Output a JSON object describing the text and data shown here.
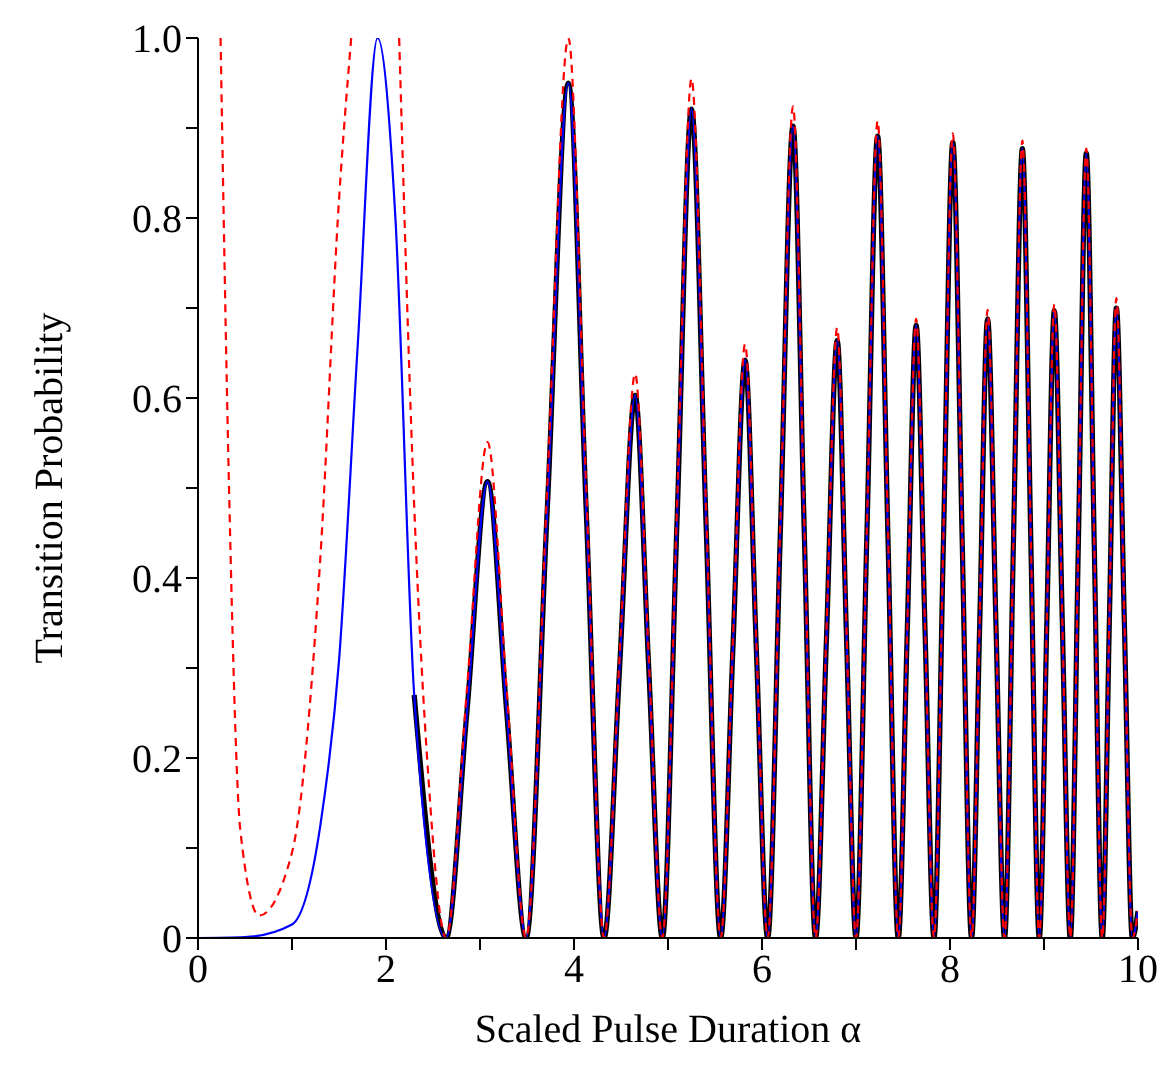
{
  "chart_data": {
    "type": "line",
    "xlabel": "Scaled Pulse Duration α",
    "ylabel": "Transition Probability",
    "xlim": [
      0,
      10
    ],
    "ylim": [
      0,
      1
    ],
    "xticks": [
      0,
      {
        "value": 1,
        "label": null
      },
      2,
      {
        "value": 3,
        "label": null
      },
      4,
      {
        "value": 5,
        "label": null
      },
      6,
      {
        "value": 7,
        "label": null
      },
      8,
      {
        "value": 9,
        "label": null
      },
      10
    ],
    "yticks": [
      0,
      {
        "value": 0.1,
        "label": null
      },
      0.2,
      {
        "value": 0.3,
        "label": null
      },
      0.4,
      {
        "value": 0.5,
        "label": null
      },
      0.6,
      {
        "value": 0.7,
        "label": null
      },
      0.8,
      {
        "value": 0.9,
        "label": null
      },
      {
        "value": 1,
        "label": "1.0"
      }
    ],
    "series": [
      {
        "color": "#000000",
        "line_style": "solid",
        "x": [
          2.3,
          2.64,
          2.86,
          3.08,
          3.285,
          3.49,
          3.715,
          3.94,
          4.13,
          4.32,
          4.485,
          4.65,
          4.795,
          4.94,
          5.095,
          5.25,
          5.405,
          5.56,
          5.69,
          5.82,
          5.94,
          6.06,
          6.195,
          6.33,
          6.45,
          6.57,
          6.685,
          6.8,
          6.9,
          7.0,
          7.115,
          7.23,
          7.34,
          7.45,
          7.545,
          7.64,
          7.735,
          7.83,
          7.93,
          8.03,
          8.13,
          8.23,
          8.315,
          8.4,
          8.49,
          8.58,
          8.675,
          8.77,
          8.86,
          8.95,
          9.03,
          9.11,
          9.195,
          9.28,
          9.365,
          9.45,
          9.535,
          9.62,
          9.695,
          9.77,
          9.855,
          9.94,
          10
        ],
        "values": [
          0.27,
          0,
          0.25,
          0.507,
          0.25,
          0,
          0.475,
          0.95,
          0.475,
          0,
          0.3,
          0.603,
          0.3,
          0,
          0.46,
          0.921,
          0.46,
          0,
          0.32,
          0.642,
          0.32,
          0,
          0.45,
          0.902,
          0.45,
          0,
          0.33,
          0.664,
          0.33,
          0,
          0.445,
          0.891,
          0.445,
          0,
          0.34,
          0.681,
          0.34,
          0,
          0.44,
          0.884,
          0.44,
          0,
          0.344,
          0.688,
          0.344,
          0,
          0.44,
          0.877,
          0.44,
          0,
          0.35,
          0.697,
          0.35,
          0,
          0.435,
          0.872,
          0.435,
          0,
          0.35,
          0.7,
          0.35,
          0,
          0.03
        ]
      },
      {
        "color": "#0000ff",
        "line_style": "solid",
        "x": [
          0,
          0.5,
          1.0,
          1.3,
          1.5,
          1.7,
          1.91,
          2.1,
          2.3,
          2.64,
          2.86,
          3.08,
          3.285,
          3.49,
          3.715,
          3.94,
          4.13,
          4.32,
          4.485,
          4.65,
          4.795,
          4.94,
          5.095,
          5.25,
          5.405,
          5.56,
          5.69,
          5.82,
          5.94,
          6.06,
          6.195,
          6.33,
          6.45,
          6.57,
          6.685,
          6.8,
          6.9,
          7.0,
          7.115,
          7.23,
          7.34,
          7.45,
          7.545,
          7.64,
          7.735,
          7.83,
          7.93,
          8.03,
          8.13,
          8.23,
          8.315,
          8.4,
          8.49,
          8.58,
          8.675,
          8.77,
          8.86,
          8.95,
          9.03,
          9.11,
          9.195,
          9.28,
          9.365,
          9.45,
          9.535,
          9.62,
          9.695,
          9.77,
          9.855,
          9.94,
          10
        ],
        "values": [
          0,
          0.001,
          0.015,
          0.124,
          0.308,
          0.66,
          1.0,
          0.8,
          0.27,
          0,
          0.25,
          0.507,
          0.25,
          0,
          0.475,
          0.95,
          0.475,
          0,
          0.3,
          0.603,
          0.3,
          0,
          0.46,
          0.921,
          0.46,
          0,
          0.32,
          0.642,
          0.32,
          0,
          0.45,
          0.902,
          0.45,
          0,
          0.33,
          0.664,
          0.33,
          0,
          0.445,
          0.891,
          0.445,
          0,
          0.34,
          0.681,
          0.34,
          0,
          0.44,
          0.884,
          0.44,
          0,
          0.344,
          0.688,
          0.344,
          0,
          0.44,
          0.877,
          0.44,
          0,
          0.35,
          0.697,
          0.35,
          0,
          0.435,
          0.872,
          0.435,
          0,
          0.35,
          0.7,
          0.35,
          0,
          0.03
        ]
      },
      {
        "color": "#ff0000",
        "line_style": "dashed",
        "x": [
          0.24,
          0.33,
          0.45,
          0.65,
          1.0,
          1.3,
          1.5,
          1.63,
          1.9,
          2.14,
          2.3,
          2.45,
          2.64,
          2.86,
          3.08,
          3.285,
          3.49,
          3.715,
          3.94,
          4.13,
          4.32,
          4.485,
          4.65,
          4.795,
          4.94,
          5.095,
          5.25,
          5.405,
          5.56,
          5.69,
          5.82,
          5.94,
          6.06,
          6.195,
          6.33,
          6.45,
          6.57,
          6.685,
          6.8,
          6.9,
          7.0,
          7.115,
          7.23,
          7.34,
          7.45,
          7.545,
          7.64,
          7.735,
          7.83,
          7.93,
          8.03,
          8.13,
          8.23,
          8.315,
          8.4,
          8.49,
          8.58,
          8.675,
          8.77,
          8.86,
          8.95,
          9.03,
          9.11,
          9.195,
          9.28,
          9.365,
          9.45,
          9.535,
          9.62,
          9.695,
          9.77,
          9.855,
          9.94,
          10
        ],
        "values": [
          1.0,
          0.5,
          0.12,
          0.025,
          0.095,
          0.42,
          0.82,
          1.0,
          null,
          1.0,
          0.48,
          0.18,
          0,
          0.275,
          0.551,
          0.275,
          0,
          0.5,
          1.0,
          0.5,
          0,
          0.313,
          0.627,
          0.313,
          0,
          0.477,
          0.955,
          0.477,
          0,
          0.33,
          0.66,
          0.33,
          0,
          0.462,
          0.924,
          0.462,
          0,
          0.34,
          0.678,
          0.34,
          0,
          0.454,
          0.908,
          0.454,
          0,
          0.344,
          0.688,
          0.344,
          0,
          0.447,
          0.894,
          0.447,
          0,
          0.35,
          0.698,
          0.35,
          0,
          0.443,
          0.886,
          0.443,
          0,
          0.352,
          0.704,
          0.352,
          0,
          0.438,
          0.877,
          0.438,
          0,
          0.355,
          0.711,
          0.355,
          0,
          0.03
        ]
      }
    ]
  }
}
